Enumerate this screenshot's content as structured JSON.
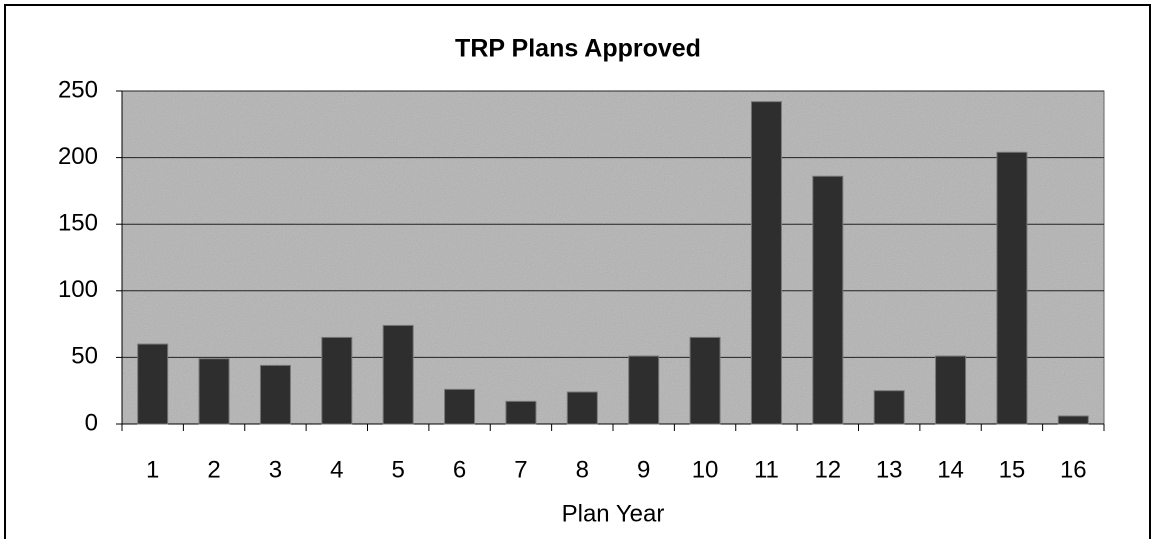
{
  "chart_data": {
    "type": "bar",
    "title": "TRP Plans Approved",
    "x_label": "Plan Year",
    "categories": [
      "1",
      "2",
      "3",
      "4",
      "5",
      "6",
      "7",
      "8",
      "9",
      "10",
      "11",
      "12",
      "13",
      "14",
      "15",
      "16"
    ],
    "values": [
      60,
      49,
      44,
      65,
      74,
      26,
      17,
      24,
      51,
      65,
      242,
      186,
      25,
      51,
      204,
      6
    ],
    "color": "#2e2e2e",
    "ylim": [
      0,
      250
    ],
    "yticks": [
      0,
      50,
      100,
      150,
      200,
      250
    ],
    "grid": true
  }
}
